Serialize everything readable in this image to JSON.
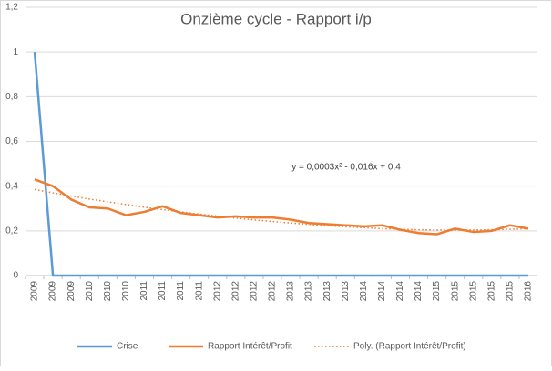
{
  "chart_data": {
    "type": "line",
    "title": "Onzième cycle - Rapport i/p",
    "annotation": "y = 0,0003x² - 0,016x + 0,4",
    "categories": [
      "2009",
      "2009",
      "2009",
      "2010",
      "2010",
      "2010",
      "2011",
      "2011",
      "2011",
      "2011",
      "2012",
      "2012",
      "2012",
      "2012",
      "2013",
      "2013",
      "2013",
      "2013",
      "2014",
      "2014",
      "2014",
      "2014",
      "2015",
      "2015",
      "2015",
      "2015",
      "2015",
      "2016"
    ],
    "series": [
      {
        "name": "Crise",
        "color": "#5b9bd5",
        "style": "solid",
        "values": [
          1,
          0,
          0,
          0,
          0,
          0,
          0,
          0,
          0,
          0,
          0,
          0,
          0,
          0,
          0,
          0,
          0,
          0,
          0,
          0,
          0,
          0,
          0,
          0,
          0,
          0,
          0,
          0
        ]
      },
      {
        "name": "Rapport Intérêt/Profit",
        "color": "#ed7d31",
        "style": "solid",
        "values": [
          0.43,
          0.4,
          0.34,
          0.305,
          0.3,
          0.27,
          0.285,
          0.31,
          0.28,
          0.27,
          0.26,
          0.265,
          0.26,
          0.26,
          0.25,
          0.235,
          0.23,
          0.225,
          0.22,
          0.225,
          0.205,
          0.19,
          0.185,
          0.21,
          0.195,
          0.2,
          0.225,
          0.21
        ]
      },
      {
        "name": "Poly. (Rapport Intérêt/Profit)",
        "color": "#ed7d31",
        "style": "dotted",
        "values": [
          0.385,
          0.37,
          0.356,
          0.342,
          0.33,
          0.318,
          0.306,
          0.295,
          0.285,
          0.275,
          0.266,
          0.257,
          0.249,
          0.242,
          0.235,
          0.229,
          0.223,
          0.218,
          0.214,
          0.21,
          0.207,
          0.205,
          0.204,
          0.203,
          0.204,
          0.205,
          0.207,
          0.21
        ]
      }
    ],
    "ylim": [
      0,
      1.2
    ],
    "yticks": [
      0,
      {
        "value": 0.2,
        "label": "0,2"
      },
      {
        "value": 0.4,
        "label": "0,4"
      },
      {
        "value": 0.6,
        "label": "0,6"
      },
      {
        "value": 0.8,
        "label": "0,8"
      },
      1,
      {
        "value": 1.2,
        "label": "1,2"
      }
    ],
    "grid": true,
    "legend": "bottom"
  }
}
